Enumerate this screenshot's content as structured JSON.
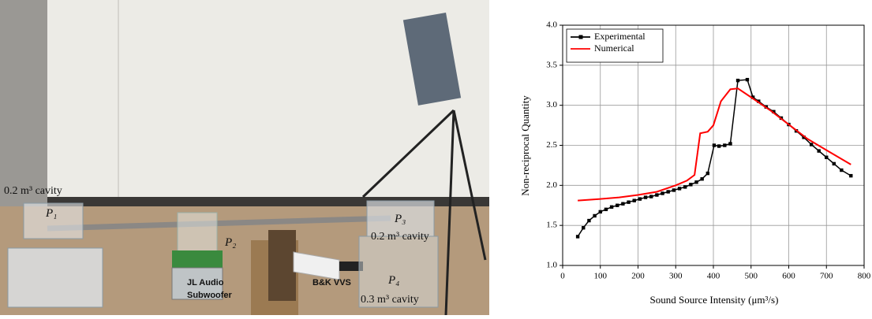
{
  "photo_labels": {
    "cavity_left": "0.2 m³ cavity",
    "p1": "P₁",
    "p2": "P₂",
    "p3": "P₃",
    "cavity_right_top": "0.2 m³ cavity",
    "p4": "P₄",
    "cavity_right_bottom": "0.3 m³ cavity",
    "subwoofer_line1": "JL Audio",
    "subwoofer_line2": "Subwoofer",
    "microphone": "B&K VVS"
  },
  "chart_data": {
    "type": "line",
    "x_label": "Sound Source Intensity (μm³/s)",
    "y_label": "Non-reciprocal Quantity",
    "xlim": [
      0,
      800
    ],
    "xticks": [
      0,
      100,
      200,
      300,
      400,
      500,
      600,
      700,
      800
    ],
    "ylim": [
      1,
      4
    ],
    "yticks": [
      {
        "value": 1,
        "label": "1.0"
      },
      1.5,
      {
        "value": 2,
        "label": "2.0"
      },
      2.5,
      {
        "value": 3,
        "label": "3.0"
      },
      3.5,
      {
        "value": 4,
        "label": "4.0"
      }
    ],
    "grid": true,
    "legend": "top-left",
    "series": [
      {
        "name": "Experimental",
        "color": "#000000",
        "marker": "square",
        "x": [
          40,
          55,
          70,
          85,
          100,
          115,
          130,
          145,
          160,
          175,
          190,
          205,
          220,
          235,
          250,
          265,
          280,
          295,
          310,
          325,
          340,
          355,
          370,
          385,
          402,
          415,
          430,
          445,
          465,
          490,
          505,
          520,
          540,
          560,
          580,
          600,
          620,
          640,
          660,
          680,
          700,
          720,
          740,
          765
        ],
        "values": [
          1.36,
          1.47,
          1.56,
          1.62,
          1.67,
          1.7,
          1.73,
          1.75,
          1.77,
          1.79,
          1.81,
          1.83,
          1.85,
          1.86,
          1.88,
          1.9,
          1.92,
          1.94,
          1.96,
          1.98,
          2.01,
          2.04,
          2.08,
          2.15,
          2.5,
          2.49,
          2.5,
          2.52,
          3.31,
          3.32,
          3.1,
          3.05,
          2.98,
          2.92,
          2.84,
          2.76,
          2.68,
          2.6,
          2.51,
          2.43,
          2.35,
          2.27,
          2.19,
          2.12
        ]
      },
      {
        "name": "Numerical",
        "color": "#ff0000",
        "marker": "none",
        "x": [
          40,
          100,
          150,
          200,
          250,
          300,
          330,
          350,
          365,
          385,
          400,
          420,
          445,
          465,
          500,
          550,
          600,
          650,
          700,
          765
        ],
        "values": [
          1.81,
          1.83,
          1.85,
          1.88,
          1.92,
          2.0,
          2.06,
          2.13,
          2.65,
          2.67,
          2.75,
          3.05,
          3.2,
          3.21,
          3.1,
          2.94,
          2.76,
          2.58,
          2.44,
          2.26
        ]
      }
    ]
  }
}
